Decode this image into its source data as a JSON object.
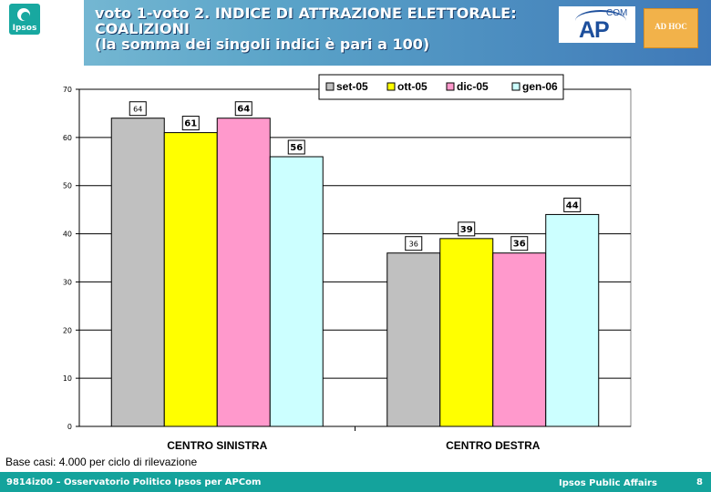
{
  "header": {
    "title_lines": [
      "voto 1-voto 2. INDICE DI ATTRAZIONE ELETTORALE:",
      "COALIZIONI",
      "(la somma dei singoli indici è pari a 100)"
    ],
    "logo_text": "Ipsos",
    "partner_logo_text": "AP",
    "partner_logo_sub": "COM",
    "adhoc_text": "AD HOC"
  },
  "chart_data": {
    "type": "bar",
    "categories": [
      "CENTRO SINISTRA",
      "CENTRO DESTRA"
    ],
    "series": [
      {
        "name": "set-05",
        "values": [
          64,
          36
        ],
        "color": "#c0c0c0"
      },
      {
        "name": "ott-05",
        "values": [
          61,
          39
        ],
        "color": "#ffff00"
      },
      {
        "name": "dic-05",
        "values": [
          64,
          36
        ],
        "color": "#ff99cc"
      },
      {
        "name": "gen-06",
        "values": [
          56,
          44
        ],
        "color": "#ccffff"
      }
    ],
    "ylim": [
      0,
      70
    ],
    "yticks": [
      0,
      10,
      20,
      30,
      40,
      50,
      60,
      70
    ],
    "grid": true,
    "legend": "top-right",
    "title": "",
    "xlabel": "",
    "ylabel": ""
  },
  "base_note": "Base casi: 4.000 per ciclo di rilevazione",
  "footer": {
    "left": "9814iz00 – Osservatorio Politico Ipsos per APCom",
    "right": "Ipsos Public Affairs",
    "page": "8"
  }
}
